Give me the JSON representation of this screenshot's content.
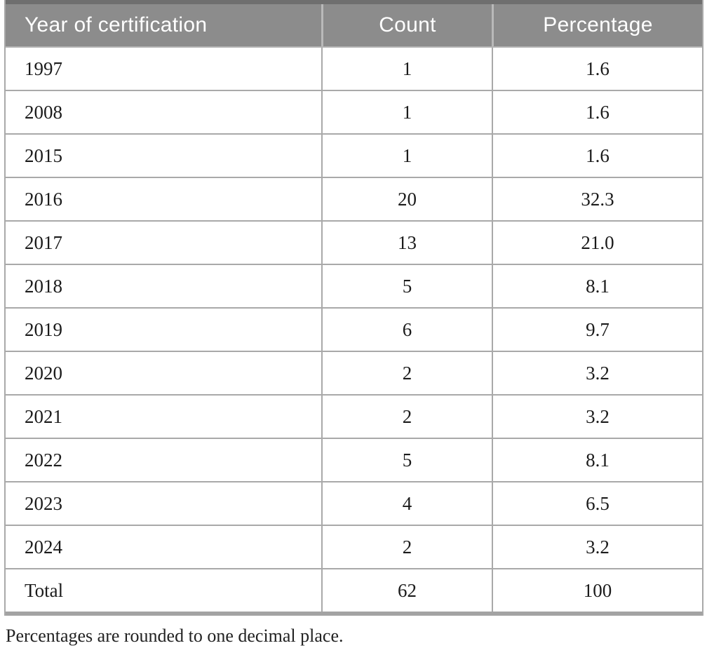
{
  "table": {
    "columns": [
      "Year of certification",
      "Count",
      "Percentage"
    ],
    "rows": [
      {
        "year": "1997",
        "count": "1",
        "percentage": "1.6"
      },
      {
        "year": "2008",
        "count": "1",
        "percentage": "1.6"
      },
      {
        "year": "2015",
        "count": "1",
        "percentage": "1.6"
      },
      {
        "year": "2016",
        "count": "20",
        "percentage": "32.3"
      },
      {
        "year": "2017",
        "count": "13",
        "percentage": "21.0"
      },
      {
        "year": "2018",
        "count": "5",
        "percentage": "8.1"
      },
      {
        "year": "2019",
        "count": "6",
        "percentage": "9.7"
      },
      {
        "year": "2020",
        "count": "2",
        "percentage": "3.2"
      },
      {
        "year": "2021",
        "count": "2",
        "percentage": "3.2"
      },
      {
        "year": "2022",
        "count": "5",
        "percentage": "8.1"
      },
      {
        "year": "2023",
        "count": "4",
        "percentage": "6.5"
      },
      {
        "year": "2024",
        "count": "2",
        "percentage": "3.2"
      },
      {
        "year": "Total",
        "count": "62",
        "percentage": "100"
      }
    ]
  },
  "footnote": "Percentages are rounded to one decimal place.",
  "colors": {
    "header_bg": "#8c8c8c",
    "header_text": "#ffffff",
    "border": "#a9a9a9",
    "header_divider": "#b9b9b9",
    "top_rule": "#6f6f6f",
    "bottom_rule": "#a3a3a3",
    "body_text": "#1b1b1b",
    "footnote_text": "#222222"
  }
}
